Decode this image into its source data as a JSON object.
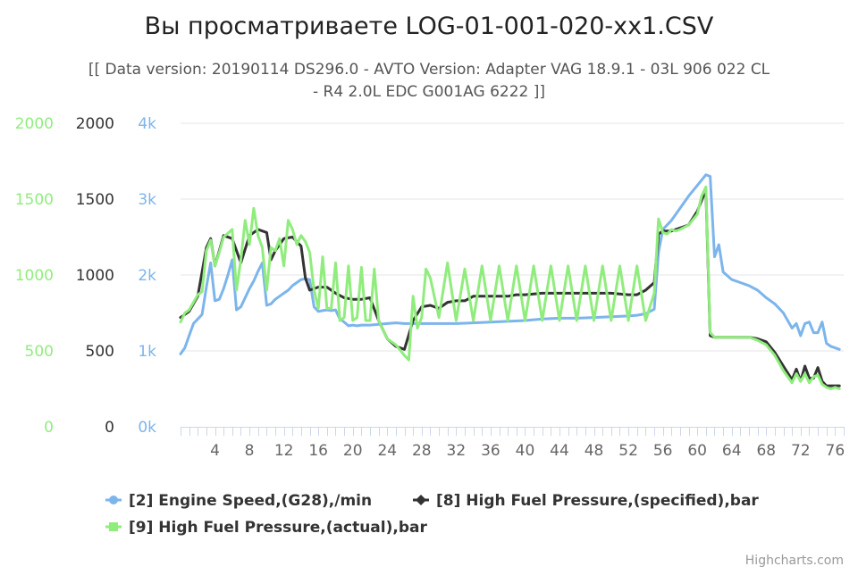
{
  "chart_data": {
    "type": "line",
    "title": "Вы просматриваете LOG-01-001-020-xx1.CSV",
    "subtitle_lines": [
      "[[ Data version: 20190114 DS296.0 - AVTO Version: Adapter VAG 18.9.1 - 03L 906 022 CL",
      "- R4 2.0L EDC G001AG 6222 ]]"
    ],
    "x_range": [
      0,
      77
    ],
    "x_ticks": [
      4,
      8,
      12,
      16,
      20,
      24,
      28,
      32,
      36,
      40,
      44,
      48,
      52,
      56,
      60,
      64,
      68,
      72,
      76
    ],
    "y_axes": [
      {
        "name": "actual-pressure-axis",
        "ticks": [
          "0",
          "500",
          "1000",
          "1500",
          "2000"
        ],
        "color": "#90ed7d",
        "min": 0,
        "max": 2000
      },
      {
        "name": "specified-pressure-axis",
        "ticks": [
          "0",
          "500",
          "1000",
          "1500",
          "2000"
        ],
        "color": "#333333",
        "min": 0,
        "max": 2000
      },
      {
        "name": "engine-speed-axis",
        "ticks": [
          "0k",
          "1k",
          "2k",
          "3k",
          "4k"
        ],
        "color": "#7cb5ec",
        "min": 0,
        "max": 4000
      }
    ],
    "series": [
      {
        "name": "[2] Engine Speed,(G28),/min",
        "color": "#7cb5ec",
        "axis": 2,
        "marker": "circle",
        "points": [
          [
            0,
            960
          ],
          [
            0.5,
            1040
          ],
          [
            1,
            1200
          ],
          [
            1.5,
            1360
          ],
          [
            2,
            1420
          ],
          [
            2.5,
            1480
          ],
          [
            3,
            1840
          ],
          [
            3.5,
            2160
          ],
          [
            4,
            1660
          ],
          [
            4.5,
            1680
          ],
          [
            5,
            1820
          ],
          [
            5.5,
            2000
          ],
          [
            6,
            2200
          ],
          [
            6.5,
            1540
          ],
          [
            7,
            1580
          ],
          [
            7.5,
            1700
          ],
          [
            8,
            1820
          ],
          [
            8.5,
            1920
          ],
          [
            9,
            2050
          ],
          [
            9.5,
            2160
          ],
          [
            10,
            1600
          ],
          [
            10.5,
            1620
          ],
          [
            11,
            1680
          ],
          [
            11.5,
            1720
          ],
          [
            12,
            1760
          ],
          [
            12.5,
            1800
          ],
          [
            13,
            1860
          ],
          [
            13.5,
            1900
          ],
          [
            14,
            1940
          ],
          [
            14.5,
            1950
          ],
          [
            15,
            1940
          ],
          [
            15.5,
            1580
          ],
          [
            16,
            1520
          ],
          [
            16.5,
            1530
          ],
          [
            17,
            1540
          ],
          [
            17.5,
            1530
          ],
          [
            18,
            1540
          ],
          [
            18.5,
            1420
          ],
          [
            19,
            1380
          ],
          [
            19.5,
            1330
          ],
          [
            20,
            1340
          ],
          [
            20.5,
            1330
          ],
          [
            21,
            1340
          ],
          [
            22,
            1340
          ],
          [
            23,
            1350
          ],
          [
            24,
            1360
          ],
          [
            25,
            1370
          ],
          [
            26,
            1360
          ],
          [
            27,
            1360
          ],
          [
            28,
            1360
          ],
          [
            30,
            1360
          ],
          [
            32,
            1360
          ],
          [
            34,
            1370
          ],
          [
            36,
            1380
          ],
          [
            38,
            1390
          ],
          [
            40,
            1400
          ],
          [
            42,
            1420
          ],
          [
            44,
            1430
          ],
          [
            46,
            1430
          ],
          [
            48,
            1440
          ],
          [
            50,
            1450
          ],
          [
            52,
            1460
          ],
          [
            53,
            1470
          ],
          [
            54,
            1490
          ],
          [
            55,
            1550
          ],
          [
            55.5,
            2300
          ],
          [
            56,
            2600
          ],
          [
            57,
            2720
          ],
          [
            58,
            2880
          ],
          [
            59,
            3040
          ],
          [
            60,
            3180
          ],
          [
            61,
            3320
          ],
          [
            61.5,
            3300
          ],
          [
            62,
            2240
          ],
          [
            62.5,
            2400
          ],
          [
            63,
            2040
          ],
          [
            64,
            1940
          ],
          [
            65,
            1900
          ],
          [
            66,
            1860
          ],
          [
            67,
            1800
          ],
          [
            68,
            1700
          ],
          [
            69,
            1620
          ],
          [
            70,
            1500
          ],
          [
            71,
            1300
          ],
          [
            71.5,
            1360
          ],
          [
            72,
            1200
          ],
          [
            72.5,
            1360
          ],
          [
            73,
            1380
          ],
          [
            73.5,
            1240
          ],
          [
            74,
            1240
          ],
          [
            74.5,
            1380
          ],
          [
            75,
            1100
          ],
          [
            75.5,
            1060
          ],
          [
            76,
            1040
          ],
          [
            76.5,
            1020
          ]
        ]
      },
      {
        "name": "[8] High Fuel Pressure,(specified),bar",
        "color": "#333333",
        "axis": 1,
        "marker": "diamond",
        "points": [
          [
            0,
            720
          ],
          [
            1,
            760
          ],
          [
            2,
            860
          ],
          [
            3,
            1180
          ],
          [
            3.5,
            1240
          ],
          [
            4,
            1060
          ],
          [
            4.5,
            1160
          ],
          [
            5,
            1260
          ],
          [
            6,
            1240
          ],
          [
            7,
            1080
          ],
          [
            8,
            1260
          ],
          [
            9,
            1300
          ],
          [
            10,
            1280
          ],
          [
            10.5,
            1100
          ],
          [
            11,
            1160
          ],
          [
            12,
            1240
          ],
          [
            13,
            1250
          ],
          [
            14,
            1190
          ],
          [
            14.5,
            980
          ],
          [
            15,
            900
          ],
          [
            16,
            920
          ],
          [
            17,
            920
          ],
          [
            18,
            880
          ],
          [
            19,
            850
          ],
          [
            20,
            840
          ],
          [
            21,
            840
          ],
          [
            22,
            850
          ],
          [
            23,
            700
          ],
          [
            24,
            580
          ],
          [
            25,
            530
          ],
          [
            26,
            510
          ],
          [
            27,
            700
          ],
          [
            28,
            790
          ],
          [
            29,
            800
          ],
          [
            30,
            780
          ],
          [
            31,
            820
          ],
          [
            32,
            830
          ],
          [
            33,
            830
          ],
          [
            34,
            860
          ],
          [
            35,
            860
          ],
          [
            36,
            860
          ],
          [
            37,
            860
          ],
          [
            38,
            860
          ],
          [
            39,
            870
          ],
          [
            40,
            870
          ],
          [
            42,
            880
          ],
          [
            44,
            880
          ],
          [
            46,
            880
          ],
          [
            48,
            880
          ],
          [
            50,
            880
          ],
          [
            52,
            870
          ],
          [
            53,
            870
          ],
          [
            54,
            900
          ],
          [
            55,
            950
          ],
          [
            55.5,
            1270
          ],
          [
            56,
            1290
          ],
          [
            57,
            1290
          ],
          [
            58,
            1310
          ],
          [
            59,
            1330
          ],
          [
            60,
            1420
          ],
          [
            61,
            1560
          ],
          [
            61.5,
            600
          ],
          [
            62,
            590
          ],
          [
            64,
            590
          ],
          [
            66,
            590
          ],
          [
            67,
            580
          ],
          [
            68,
            560
          ],
          [
            69,
            490
          ],
          [
            70,
            400
          ],
          [
            71,
            310
          ],
          [
            71.5,
            380
          ],
          [
            72,
            300
          ],
          [
            72.5,
            400
          ],
          [
            73,
            320
          ],
          [
            73.5,
            320
          ],
          [
            74,
            390
          ],
          [
            74.5,
            300
          ],
          [
            75,
            270
          ],
          [
            76,
            270
          ],
          [
            76.5,
            270
          ]
        ]
      },
      {
        "name": "[9] High Fuel Pressure,(actual),bar",
        "color": "#90ed7d",
        "axis": 0,
        "marker": "square",
        "points": [
          [
            0,
            690
          ],
          [
            0.5,
            750
          ],
          [
            1,
            770
          ],
          [
            1.5,
            820
          ],
          [
            2,
            870
          ],
          [
            2.5,
            890
          ],
          [
            3,
            1160
          ],
          [
            3.5,
            1230
          ],
          [
            4,
            1060
          ],
          [
            4.5,
            1150
          ],
          [
            5,
            1250
          ],
          [
            6,
            1300
          ],
          [
            6.5,
            900
          ],
          [
            7,
            1100
          ],
          [
            7.5,
            1360
          ],
          [
            8,
            1200
          ],
          [
            8.5,
            1440
          ],
          [
            9,
            1260
          ],
          [
            9.5,
            1180
          ],
          [
            10,
            900
          ],
          [
            10.5,
            1180
          ],
          [
            11,
            1160
          ],
          [
            11.5,
            1240
          ],
          [
            12,
            1060
          ],
          [
            12.5,
            1360
          ],
          [
            13,
            1300
          ],
          [
            13.5,
            1200
          ],
          [
            14,
            1260
          ],
          [
            14.5,
            1220
          ],
          [
            15,
            1150
          ],
          [
            15.5,
            900
          ],
          [
            16,
            780
          ],
          [
            16.5,
            1120
          ],
          [
            17,
            780
          ],
          [
            17.5,
            780
          ],
          [
            18,
            1080
          ],
          [
            18.5,
            700
          ],
          [
            19,
            720
          ],
          [
            19.5,
            1060
          ],
          [
            20,
            700
          ],
          [
            20.5,
            720
          ],
          [
            21,
            1050
          ],
          [
            21.5,
            700
          ],
          [
            22,
            700
          ],
          [
            22.5,
            1040
          ],
          [
            23,
            700
          ],
          [
            24,
            580
          ],
          [
            25,
            540
          ],
          [
            26,
            470
          ],
          [
            26.5,
            440
          ],
          [
            27,
            860
          ],
          [
            27.5,
            650
          ],
          [
            28,
            720
          ],
          [
            28.5,
            1040
          ],
          [
            29,
            980
          ],
          [
            30,
            720
          ],
          [
            31,
            1080
          ],
          [
            32,
            700
          ],
          [
            33,
            1040
          ],
          [
            34,
            700
          ],
          [
            35,
            1060
          ],
          [
            36,
            700
          ],
          [
            37,
            1060
          ],
          [
            38,
            700
          ],
          [
            39,
            1060
          ],
          [
            40,
            700
          ],
          [
            41,
            1060
          ],
          [
            42,
            700
          ],
          [
            43,
            1060
          ],
          [
            44,
            700
          ],
          [
            45,
            1060
          ],
          [
            46,
            700
          ],
          [
            47,
            1060
          ],
          [
            48,
            700
          ],
          [
            49,
            1060
          ],
          [
            50,
            700
          ],
          [
            51,
            1060
          ],
          [
            52,
            700
          ],
          [
            53,
            1060
          ],
          [
            54,
            700
          ],
          [
            55,
            880
          ],
          [
            55.5,
            1370
          ],
          [
            56,
            1280
          ],
          [
            56.5,
            1270
          ],
          [
            57,
            1300
          ],
          [
            57.5,
            1290
          ],
          [
            58,
            1300
          ],
          [
            59,
            1330
          ],
          [
            60,
            1400
          ],
          [
            60.5,
            1520
          ],
          [
            61,
            1580
          ],
          [
            61.5,
            620
          ],
          [
            62,
            590
          ],
          [
            64,
            590
          ],
          [
            66,
            590
          ],
          [
            67,
            570
          ],
          [
            68,
            540
          ],
          [
            69,
            470
          ],
          [
            70,
            370
          ],
          [
            71,
            290
          ],
          [
            71.5,
            350
          ],
          [
            72,
            300
          ],
          [
            72.5,
            350
          ],
          [
            73,
            290
          ],
          [
            73.5,
            330
          ],
          [
            74,
            340
          ],
          [
            74.5,
            280
          ],
          [
            75,
            260
          ],
          [
            75.5,
            250
          ],
          [
            76,
            260
          ],
          [
            76.5,
            250
          ]
        ]
      }
    ],
    "legend": {
      "position": "bottom-left"
    },
    "credits": "Highcharts.com"
  }
}
